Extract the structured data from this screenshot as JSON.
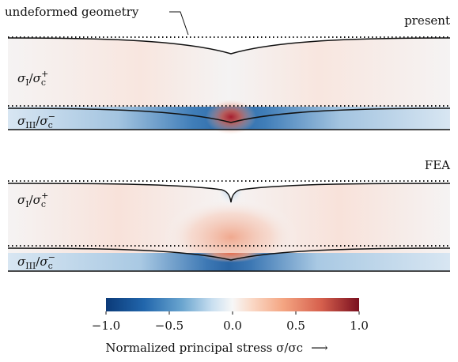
{
  "annotations": {
    "undeformed": "undeformed geometry"
  },
  "panels": [
    {
      "method": "present",
      "label_top": "σI/σc+",
      "label_bottom": "σIII/σc−"
    },
    {
      "method": "FEA",
      "label_top": "σI/σc+",
      "label_bottom": "σIII/σc−"
    }
  ],
  "colorbar": {
    "min": -1.0,
    "max": 1.0,
    "colormap": "diverging blue-white-red",
    "color_low": "#0b3a78",
    "color_mid": "#f7f7f7",
    "color_high": "#7a0f1f",
    "ticks": [
      "−1.0",
      "−0.5",
      "0.0",
      "0.5",
      "1.0"
    ],
    "label": "Normalized principal stress σ/σc",
    "arrow": "⟶"
  }
}
